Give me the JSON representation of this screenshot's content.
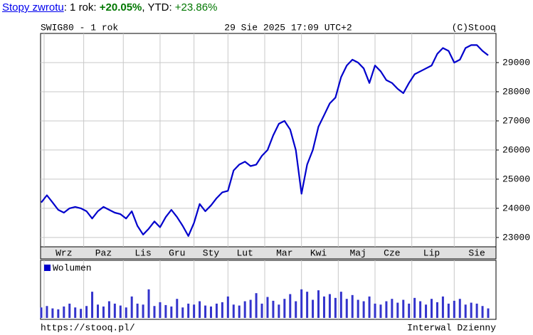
{
  "header": {
    "link": "Stopy zwrotu",
    "text1": ": 1 rok: ",
    "return_1y": "+20.05%",
    "text2": ", YTD: ",
    "return_ytd": "+23.86%"
  },
  "chart_data": [
    {
      "type": "line",
      "title": "SWIG80 - 1 rok",
      "subtitle": "29 Sie 2025 17:09 UTC+2",
      "source": "(C)Stooq",
      "color": "#0000cc",
      "categories": [
        null,
        null,
        null,
        null,
        "Wrz",
        null,
        null,
        null,
        null,
        null,
        null,
        "Paz",
        null,
        null,
        null,
        null,
        null,
        null,
        "Lis",
        null,
        null,
        null,
        null,
        null,
        "Gru",
        null,
        null,
        null,
        null,
        null,
        "Sty",
        null,
        null,
        null,
        null,
        null,
        "Lut",
        null,
        null,
        null,
        null,
        null,
        null,
        "Mar",
        null,
        null,
        null,
        null,
        null,
        "Kwi",
        null,
        null,
        null,
        null,
        null,
        null,
        "Maj",
        null,
        null,
        null,
        null,
        null,
        "Cze",
        null,
        null,
        null,
        null,
        null,
        null,
        "Lip",
        null,
        null,
        null,
        null,
        null,
        null,
        null,
        "Sie",
        null,
        null
      ],
      "values": [
        24200,
        24450,
        24200,
        23950,
        23850,
        24000,
        24050,
        24000,
        23900,
        23650,
        23900,
        24050,
        23950,
        23850,
        23800,
        23650,
        23900,
        23400,
        23100,
        23300,
        23550,
        23350,
        23700,
        23950,
        23700,
        23400,
        23050,
        23500,
        24150,
        23900,
        24100,
        24350,
        24550,
        24600,
        25300,
        25500,
        25600,
        25450,
        25500,
        25800,
        26000,
        26500,
        26900,
        27000,
        26700,
        26000,
        24500,
        25500,
        26000,
        26800,
        27200,
        27600,
        27800,
        28500,
        28900,
        29100,
        29000,
        28800,
        28300,
        28900,
        28700,
        28400,
        28300,
        28100,
        27950,
        28300,
        28600,
        28700,
        28800,
        28900,
        29300,
        29500,
        29400,
        29000,
        29100,
        29500,
        29600,
        29600,
        29400,
        29250
      ],
      "ylim": [
        22680,
        30000
      ],
      "yticks": [
        23000,
        24000,
        25000,
        26000,
        27000,
        28000,
        29000
      ],
      "grid": true
    },
    {
      "type": "bar",
      "ylim": [
        0,
        100
      ],
      "series": [
        {
          "name": "Wolumen",
          "color": "#3333cc",
          "values": [
            22,
            25,
            20,
            18,
            24,
            30,
            22,
            19,
            25,
            55,
            28,
            24,
            35,
            30,
            26,
            22,
            45,
            30,
            28,
            60,
            25,
            33,
            27,
            24,
            40,
            22,
            30,
            28,
            35,
            26,
            24,
            30,
            33,
            45,
            28,
            26,
            35,
            38,
            52,
            30,
            44,
            36,
            28,
            40,
            50,
            35,
            60,
            55,
            38,
            58,
            45,
            50,
            42,
            55,
            40,
            48,
            38,
            35,
            45,
            30,
            28,
            35,
            40,
            32,
            38,
            30,
            42,
            35,
            28,
            40,
            33,
            45,
            30,
            36,
            40,
            28,
            32,
            30,
            25,
            20
          ]
        }
      ]
    }
  ],
  "footer": {
    "url": "https://stooq.pl/",
    "interval": "Interwal Dzienny"
  }
}
